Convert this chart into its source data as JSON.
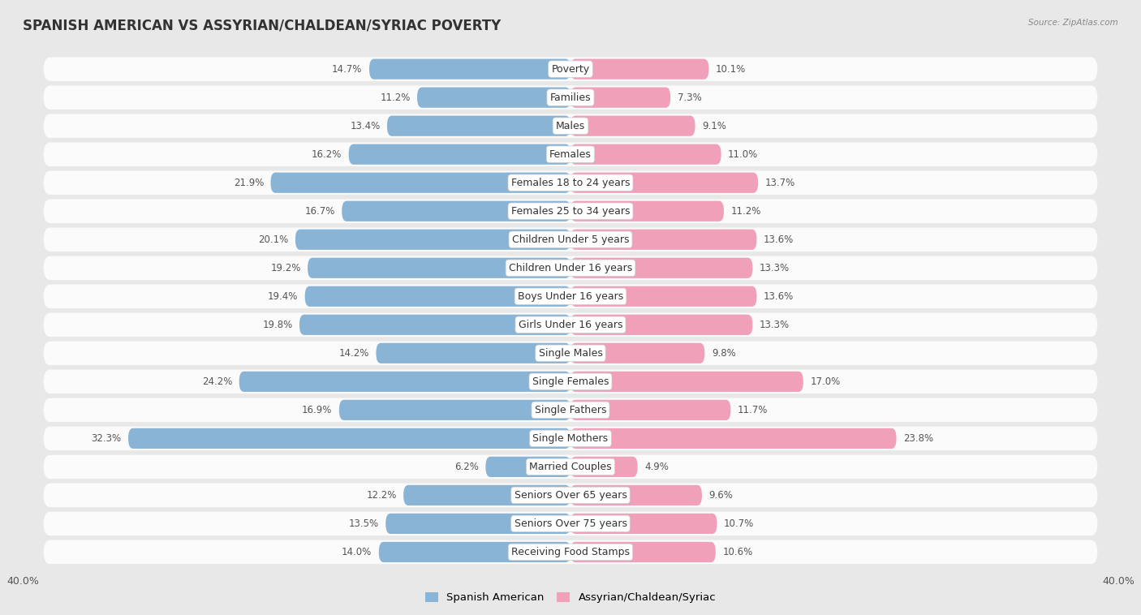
{
  "title": "SPANISH AMERICAN VS ASSYRIAN/CHALDEAN/SYRIAC POVERTY",
  "source": "Source: ZipAtlas.com",
  "categories": [
    "Poverty",
    "Families",
    "Males",
    "Females",
    "Females 18 to 24 years",
    "Females 25 to 34 years",
    "Children Under 5 years",
    "Children Under 16 years",
    "Boys Under 16 years",
    "Girls Under 16 years",
    "Single Males",
    "Single Females",
    "Single Fathers",
    "Single Mothers",
    "Married Couples",
    "Seniors Over 65 years",
    "Seniors Over 75 years",
    "Receiving Food Stamps"
  ],
  "left_values": [
    14.7,
    11.2,
    13.4,
    16.2,
    21.9,
    16.7,
    20.1,
    19.2,
    19.4,
    19.8,
    14.2,
    24.2,
    16.9,
    32.3,
    6.2,
    12.2,
    13.5,
    14.0
  ],
  "right_values": [
    10.1,
    7.3,
    9.1,
    11.0,
    13.7,
    11.2,
    13.6,
    13.3,
    13.6,
    13.3,
    9.8,
    17.0,
    11.7,
    23.8,
    4.9,
    9.6,
    10.7,
    10.6
  ],
  "left_color": "#8ab4d5",
  "right_color": "#f0a0b8",
  "left_label": "Spanish American",
  "right_label": "Assyrian/Chaldean/Syriac",
  "axis_max": 40.0,
  "bg_color": "#e8e8e8",
  "row_bg_color": "#f5f5f5",
  "bar_bg_color": "#f5f5f5",
  "title_fontsize": 12,
  "label_fontsize": 9,
  "value_fontsize": 8.5,
  "axis_fontsize": 9
}
